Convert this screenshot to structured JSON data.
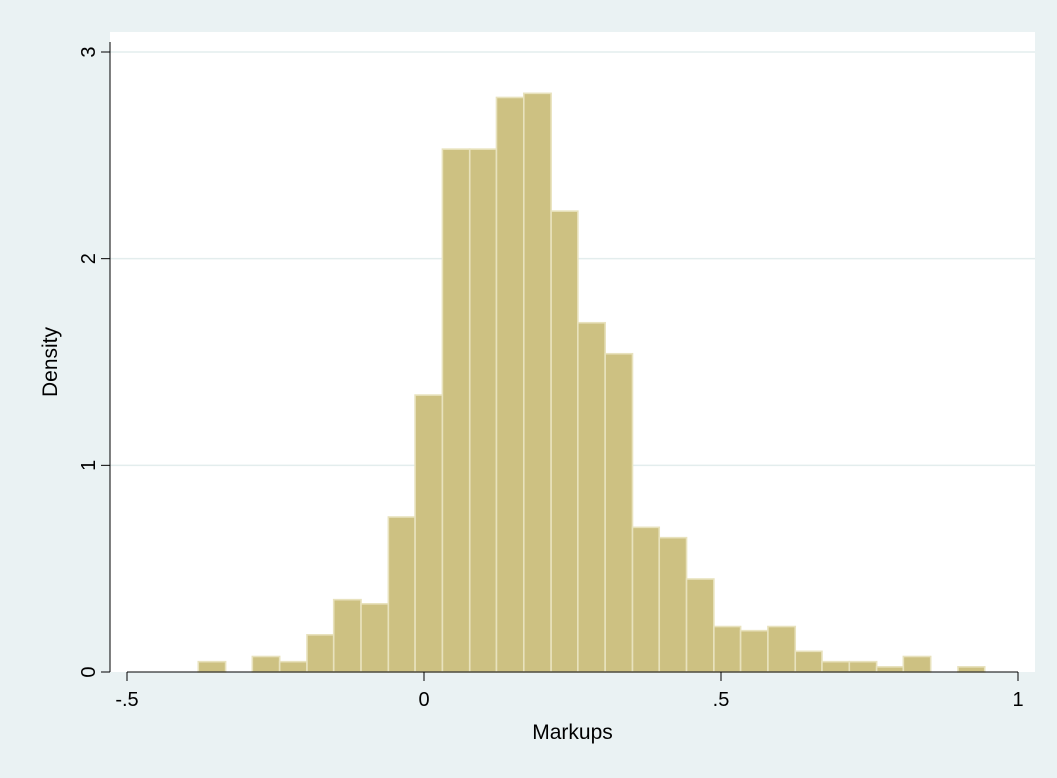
{
  "chart_data": {
    "type": "bar",
    "subtype": "histogram",
    "xlabel": "Markups",
    "ylabel": "Density",
    "xlim": [
      -0.5,
      1
    ],
    "ylim": [
      0,
      3
    ],
    "x_ticks": [
      {
        "value": -0.5,
        "label": "-.5"
      },
      {
        "value": 0,
        "label": "0"
      },
      {
        "value": 0.5,
        "label": ".5"
      },
      {
        "value": 1,
        "label": "1"
      }
    ],
    "y_ticks": [
      {
        "value": 0,
        "label": "0"
      },
      {
        "value": 1,
        "label": "1"
      },
      {
        "value": 2,
        "label": "2"
      },
      {
        "value": 3,
        "label": "3"
      }
    ],
    "grid": "horizontal",
    "bin_width": 0.0457,
    "bins": [
      {
        "x0": -0.38,
        "x1": -0.334,
        "density": 0.05
      },
      {
        "x0": -0.334,
        "x1": -0.289,
        "density": 0.0
      },
      {
        "x0": -0.289,
        "x1": -0.243,
        "density": 0.075
      },
      {
        "x0": -0.243,
        "x1": -0.197,
        "density": 0.05
      },
      {
        "x0": -0.197,
        "x1": -0.152,
        "density": 0.18
      },
      {
        "x0": -0.152,
        "x1": -0.106,
        "density": 0.35
      },
      {
        "x0": -0.106,
        "x1": -0.06,
        "density": 0.33
      },
      {
        "x0": -0.06,
        "x1": -0.015,
        "density": 0.75
      },
      {
        "x0": -0.015,
        "x1": 0.031,
        "density": 1.34
      },
      {
        "x0": 0.031,
        "x1": 0.077,
        "density": 2.53
      },
      {
        "x0": 0.077,
        "x1": 0.122,
        "density": 2.53
      },
      {
        "x0": 0.122,
        "x1": 0.168,
        "density": 2.78
      },
      {
        "x0": 0.168,
        "x1": 0.214,
        "density": 2.8
      },
      {
        "x0": 0.214,
        "x1": 0.259,
        "density": 2.23
      },
      {
        "x0": 0.259,
        "x1": 0.305,
        "density": 1.69
      },
      {
        "x0": 0.305,
        "x1": 0.351,
        "density": 1.54
      },
      {
        "x0": 0.351,
        "x1": 0.396,
        "density": 0.7
      },
      {
        "x0": 0.396,
        "x1": 0.442,
        "density": 0.65
      },
      {
        "x0": 0.442,
        "x1": 0.488,
        "density": 0.45
      },
      {
        "x0": 0.488,
        "x1": 0.533,
        "density": 0.22
      },
      {
        "x0": 0.533,
        "x1": 0.579,
        "density": 0.2
      },
      {
        "x0": 0.579,
        "x1": 0.625,
        "density": 0.22
      },
      {
        "x0": 0.625,
        "x1": 0.67,
        "density": 0.1
      },
      {
        "x0": 0.67,
        "x1": 0.716,
        "density": 0.05
      },
      {
        "x0": 0.716,
        "x1": 0.762,
        "density": 0.05
      },
      {
        "x0": 0.762,
        "x1": 0.807,
        "density": 0.025
      },
      {
        "x0": 0.807,
        "x1": 0.853,
        "density": 0.075
      },
      {
        "x0": 0.853,
        "x1": 0.899,
        "density": 0.0
      },
      {
        "x0": 0.899,
        "x1": 0.944,
        "density": 0.025
      }
    ],
    "colors": {
      "bar_fill": "#cdc182",
      "bar_stroke": "#e8e2bd",
      "outer_background": "#eaf2f3",
      "plot_background": "#ffffff",
      "grid": "#e3eded",
      "axis": "#000000"
    }
  }
}
